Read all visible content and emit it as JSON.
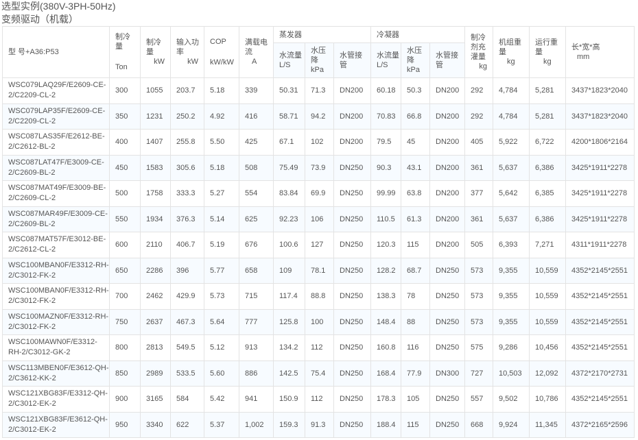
{
  "title": "选型实例(380V-3PH-50Hz)",
  "subtitle": "变频驱动（机载）",
  "table": {
    "headers": {
      "model": "型 号+A36:P53",
      "cooling_ton": {
        "label": "制冷量",
        "unit": "Ton"
      },
      "cooling_kw": {
        "label": "制冷量",
        "unit": "kW"
      },
      "input_power": {
        "label": "输入功率",
        "unit": "kW"
      },
      "cop": {
        "label": "COP",
        "unit": "kW/kW"
      },
      "full_load_current": {
        "label": "满载电流",
        "unit": "A"
      },
      "evaporator": "蒸发器",
      "condenser": "冷凝器",
      "water_flow": "水流量L/S",
      "pressure_drop": {
        "label": "水压降",
        "unit": "kPa"
      },
      "pipe": "水管接管",
      "refrigerant": {
        "label": "制冷剂充灌量",
        "unit": "kg"
      },
      "unit_weight": {
        "label": "机组重量",
        "unit": "kg"
      },
      "operating_weight": {
        "label": "运行重量",
        "unit": "kg"
      },
      "dimensions": {
        "label": "长*宽*高",
        "unit": "mm"
      }
    },
    "rows": [
      [
        "WSC079LAQ29F/E2609-CE-2/C2209-CL-2",
        "300",
        "1055",
        "203.7",
        "5.18",
        "339",
        "50.31",
        "71.3",
        "DN200",
        "60.18",
        "50.3",
        "DN200",
        "292",
        "4,784",
        "5,281",
        "3437*1823*2040"
      ],
      [
        "WSC079LAP35F/E2609-CE-2/C2209-CL-2",
        "350",
        "1231",
        "250.2",
        "4.92",
        "416",
        "58.71",
        "94.2",
        "DN200",
        "70.83",
        "66.8",
        "DN200",
        "292",
        "4,784",
        "5,281",
        "3437*1823*2040"
      ],
      [
        "WSC087LAS35F/E2612-BE-2/C2612-BL-2",
        "400",
        "1407",
        "255.8",
        "5.50",
        "425",
        "67.1",
        "102",
        "DN200",
        "79.5",
        "45",
        "DN200",
        "405",
        "5,922",
        "6,722",
        "4200*1806*2164"
      ],
      [
        "WSC087LAT47F/E3009-CE-2/C2609-BL-2",
        "450",
        "1583",
        "305.6",
        "5.18",
        "508",
        "75.49",
        "73.9",
        "DN250",
        "90.3",
        "43.1",
        "DN200",
        "361",
        "5,637",
        "6,386",
        "3425*1911*2278"
      ],
      [
        "WSC087MAT49F/E3009-BE-2/C2609-CL-2",
        "500",
        "1758",
        "333.3",
        "5.27",
        "554",
        "83.84",
        "69.9",
        "DN250",
        "99.99",
        "63.8",
        "DN200",
        "377",
        "5,642",
        "6,385",
        "3425*1911*2278"
      ],
      [
        "WSC087MAR49F/E3009-CE-2/C2609-BL-2",
        "550",
        "1934",
        "376.3",
        "5.14",
        "625",
        "92.23",
        "106",
        "DN250",
        "110.5",
        "61.3",
        "DN200",
        "361",
        "5,637",
        "6,386",
        "3425*1911*2278"
      ],
      [
        "WSC087MAT57F/E3012-BE-2/C2612-CL-2",
        "600",
        "2110",
        "406.7",
        "5.19",
        "676",
        "100.6",
        "127",
        "DN250",
        "120.3",
        "115",
        "DN200",
        "505",
        "6,393",
        "7,271",
        "4311*1911*2278"
      ],
      [
        "WSC100MBAN0F/E3312-RH-2/C3012-FK-2",
        "650",
        "2286",
        "396",
        "5.77",
        "658",
        "109",
        "78.1",
        "DN250",
        "128.2",
        "68.7",
        "DN250",
        "573",
        "9,355",
        "10,559",
        "4352*2145*2551"
      ],
      [
        "WSC100MBAN0F/E3312-RH-2/C3012-FK-2",
        "700",
        "2462",
        "429.9",
        "5.73",
        "715",
        "117.4",
        "88.8",
        "DN250",
        "138.3",
        "78",
        "DN250",
        "573",
        "9,355",
        "10,559",
        "4352*2145*2551"
      ],
      [
        "WSC100MAZN0F/E3312-RH-2/C3012-FK-2",
        "750",
        "2637",
        "467.3",
        "5.64",
        "777",
        "125.8",
        "100",
        "DN250",
        "148.4",
        "88",
        "DN250",
        "573",
        "9,355",
        "10,559",
        "4352*2145*2551"
      ],
      [
        "WSC100MAWN0F/E3312-RH-2/C3012-GK-2",
        "800",
        "2813",
        "549.5",
        "5.12",
        "913",
        "134.2",
        "112",
        "DN250",
        "160.8",
        "116",
        "DN250",
        "575",
        "9,286",
        "10,456",
        "4352*2145*2551"
      ],
      [
        "WSC113MBEN0F/E3612-QH-2/C3612-KK-2",
        "850",
        "2989",
        "533.5",
        "5.60",
        "886",
        "142.5",
        "75.4",
        "DN250",
        "168.4",
        "77.9",
        "DN300",
        "727",
        "10,503",
        "12,092",
        "4372*2170*2731"
      ],
      [
        "WSC121XBG83F/E3312-QH-2/C3012-EK-2",
        "900",
        "3165",
        "584",
        "5.42",
        "941",
        "150.9",
        "112",
        "DN250",
        "178.3",
        "105",
        "DN250",
        "557",
        "9,502",
        "10,786",
        "4352*2145*2551"
      ],
      [
        "WSC121XBG83F/E3612-QH-2/C3012-EK-2",
        "950",
        "3340",
        "622",
        "5.37",
        "1,002",
        "159.3",
        "91.3",
        "DN250",
        "188.4",
        "115",
        "DN250",
        "668",
        "9,924",
        "11,345",
        "4372*2165*2596"
      ]
    ]
  }
}
